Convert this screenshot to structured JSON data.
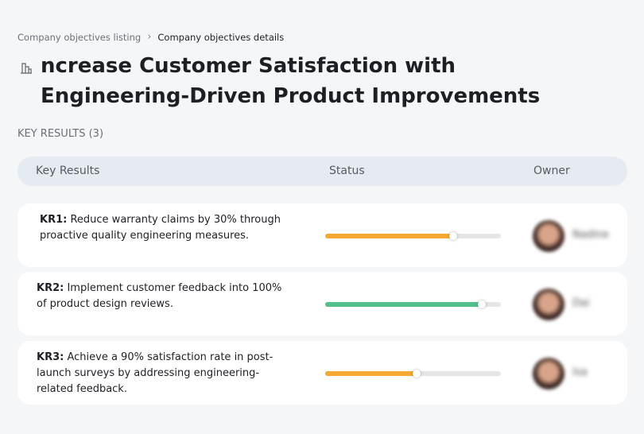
{
  "breadcrumb": {
    "items": [
      "Company objectives listing",
      "Company objectives details"
    ]
  },
  "header": {
    "title": "ncrease Customer Satisfaction with Engineering-Driven Product Improvements"
  },
  "section": {
    "title": "KEY RESULTS (3)"
  },
  "table": {
    "columns": [
      "Key Results",
      "Status",
      "Owner"
    ],
    "rows": [
      {
        "label": "KR1:",
        "text": "Reduce warranty claims by 30% through proactive quality engineering measures.",
        "progress": 73,
        "color": "#f7a832",
        "owner": "Nadine"
      },
      {
        "label": "KR2:",
        "text": "Implement customer feedback into 100% of product design reviews.",
        "progress": 89,
        "color": "#52c08a",
        "owner": "Dai"
      },
      {
        "label": "KR3:",
        "text": "Achieve a 90% satisfaction rate in post-launch surveys by addressing engineering-related feedback.",
        "progress": 52,
        "color": "#f7a832",
        "owner": "Isa"
      }
    ]
  }
}
